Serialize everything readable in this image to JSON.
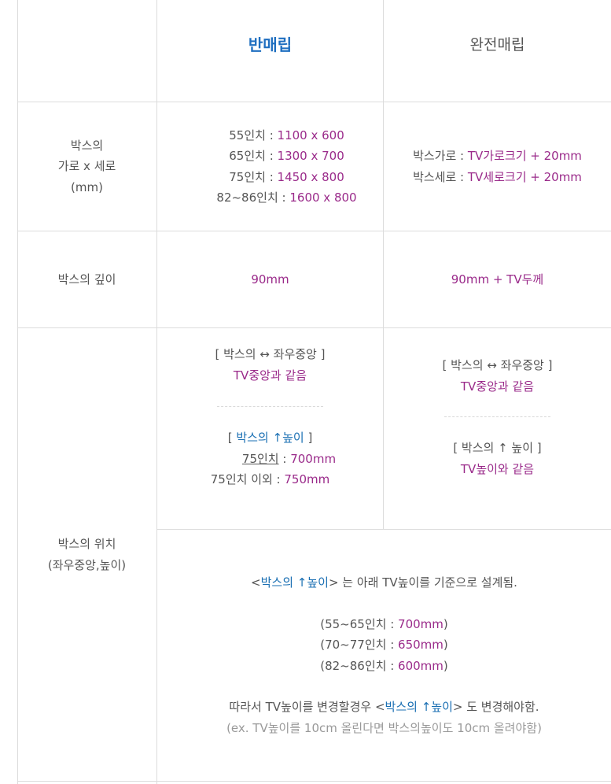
{
  "header": {
    "half": "반매립",
    "full": "완전매립"
  },
  "row_size": {
    "label": [
      "박스의",
      "가로 x 세로",
      "(mm)"
    ],
    "half": [
      {
        "k": "55인치 :",
        "v": "1100 x 600"
      },
      {
        "k": "65인치 :",
        "v": "1300 x 700"
      },
      {
        "k": "75인치 :",
        "v": "1450 x 800"
      },
      {
        "k": "82~86인치 :",
        "v": "1600 x 800"
      }
    ],
    "full": [
      {
        "k": "박스가로 :",
        "v": "TV가로크기 + 20mm"
      },
      {
        "k": "박스세로 :",
        "v": "TV세로크기 + 20mm"
      }
    ]
  },
  "row_depth": {
    "label": "박스의 깊이",
    "half": "90mm",
    "full": "90mm + TV두께"
  },
  "row_position": {
    "label": [
      "박스의 위치",
      "(좌우중앙,높이)"
    ],
    "half": {
      "lr_title": "[ 박스의 ↔ 좌우중앙 ]",
      "lr_value": "TV중앙과 같음",
      "h_open": "[ ",
      "h_title": "박스의 ↑높이",
      "h_close": " ]",
      "h1_k": "75인치",
      "h1_sep": " : ",
      "h1_v": "700mm",
      "h2_k": "75인치 이외 : ",
      "h2_v": "750mm"
    },
    "full": {
      "lr_title": "[ 박스의 ↔ 좌우중앙 ]",
      "lr_value": "TV중앙과 같음",
      "h_title": "[ 박스의 ↑ 높이 ]",
      "h_value": "TV높이와 같음"
    },
    "note": {
      "l1_a": "<",
      "l1_b": "박스의 ↑높이",
      "l1_c": "> 는 아래 TV높이를 기준으로 설계됨.",
      "specs": [
        {
          "k": "(55~65인치 : ",
          "v": "700mm",
          "e": ")"
        },
        {
          "k": "(70~77인치 : ",
          "v": "650mm",
          "e": ")"
        },
        {
          "k": "(82~86인치 : ",
          "v": "600mm",
          "e": ")"
        }
      ],
      "l5_a": "따라서 TV높이를 변경할경우 <",
      "l5_b": "박스의 ↑높이",
      "l5_c": "> 도 변경해야함.",
      "l6": "(ex. TV높이를 10cm 올린다면 박스의높이도 10cm 올려야함)"
    }
  },
  "colors": {
    "blue": "#1a6fb3",
    "purple": "#9a2a8a",
    "border": "#dcdcdc"
  }
}
